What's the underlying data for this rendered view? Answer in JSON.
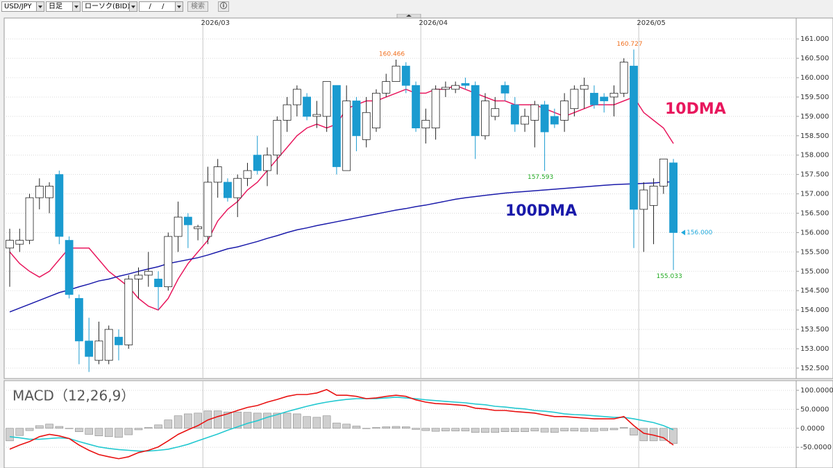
{
  "toolbar": {
    "symbol": "USD/JPY",
    "period": "日足",
    "chart_type": "ローソク(BID)",
    "date": "/ /",
    "search": "検索"
  },
  "chart_data": [
    {
      "type": "candlestick",
      "categories": [
        null,
        null,
        null,
        null,
        null,
        null,
        null,
        null,
        null,
        null,
        null,
        null,
        null,
        null,
        null,
        null,
        null,
        null,
        null,
        null,
        "2026/03",
        null,
        null,
        null,
        null,
        null,
        null,
        null,
        null,
        null,
        null,
        null,
        null,
        null,
        null,
        null,
        null,
        null,
        null,
        null,
        null,
        null,
        "2026/04",
        null,
        null,
        null,
        null,
        null,
        null,
        null,
        null,
        null,
        null,
        null,
        null,
        null,
        null,
        null,
        null,
        null,
        null,
        null,
        null,
        null,
        "2026/05",
        null,
        null,
        null
      ],
      "candles": {
        "up_color": "#ffffff",
        "down_color": "#1a9bd0",
        "open": [
          155.6,
          155.7,
          155.8,
          156.9,
          156.9,
          157.5,
          155.8,
          154.3,
          153.2,
          152.7,
          152.7,
          153.3,
          153.1,
          154.8,
          154.9,
          154.8,
          154.6,
          155.9,
          156.4,
          156.1,
          155.9,
          157.3,
          157.3,
          156.9,
          157.4,
          158.0,
          157.6,
          158.0,
          158.9,
          159.3,
          159.5,
          159.0,
          159.0,
          159.8,
          157.6,
          159.4,
          158.4,
          158.7,
          159.6,
          159.9,
          160.3,
          159.8,
          158.7,
          158.7,
          159.7,
          159.7,
          159.85,
          159.8,
          158.5,
          159.0,
          159.8,
          159.3,
          158.8,
          158.9,
          159.3,
          159.0,
          158.9,
          159.2,
          159.7,
          159.6,
          159.5,
          159.5,
          159.6,
          160.3,
          156.6,
          156.7,
          157.2,
          157.8
        ],
        "high": [
          156.1,
          156.1,
          157.0,
          157.4,
          157.3,
          157.6,
          155.9,
          154.4,
          153.8,
          153.7,
          153.6,
          153.5,
          154.9,
          155.1,
          155.5,
          155.0,
          156.0,
          156.8,
          156.5,
          156.2,
          157.7,
          157.9,
          157.4,
          157.5,
          157.8,
          158.5,
          158.2,
          159.0,
          159.5,
          159.8,
          159.6,
          159.4,
          159.9,
          159.8,
          159.8,
          159.5,
          159.5,
          159.7,
          160.1,
          160.466,
          160.4,
          159.9,
          159.2,
          159.8,
          159.9,
          159.9,
          160.0,
          159.9,
          159.6,
          159.5,
          159.9,
          159.5,
          159.2,
          159.4,
          159.4,
          159.2,
          159.6,
          159.8,
          160.0,
          159.8,
          159.6,
          159.8,
          160.5,
          160.727,
          157.3,
          157.4,
          157.9,
          157.9
        ],
        "low": [
          154.6,
          155.5,
          155.7,
          156.6,
          156.5,
          155.7,
          154.3,
          152.6,
          152.4,
          152.6,
          152.6,
          152.7,
          153.0,
          154.3,
          154.6,
          154.0,
          154.5,
          155.5,
          155.6,
          155.8,
          155.7,
          156.9,
          156.8,
          156.4,
          157.2,
          157.5,
          157.2,
          157.5,
          158.6,
          159.0,
          158.9,
          158.7,
          158.6,
          157.5,
          157.6,
          158.1,
          158.2,
          158.6,
          159.5,
          159.9,
          159.6,
          158.6,
          158.3,
          158.4,
          159.5,
          159.6,
          159.7,
          157.9,
          158.4,
          158.9,
          159.4,
          158.6,
          158.6,
          158.2,
          157.593,
          158.7,
          158.6,
          159.0,
          159.2,
          159.2,
          159.1,
          159.0,
          159.5,
          155.6,
          155.5,
          155.7,
          157.0,
          155.033
        ],
        "close": [
          155.8,
          155.8,
          156.9,
          157.2,
          157.2,
          155.9,
          154.4,
          153.2,
          152.8,
          153.2,
          153.5,
          153.1,
          154.8,
          154.9,
          155.0,
          154.6,
          155.9,
          156.4,
          156.2,
          156.15,
          157.3,
          157.7,
          156.9,
          157.4,
          157.6,
          157.6,
          158.0,
          158.9,
          159.3,
          159.7,
          159.0,
          159.05,
          159.9,
          157.7,
          159.4,
          158.5,
          159.1,
          159.6,
          159.9,
          160.3,
          159.8,
          158.7,
          158.9,
          159.7,
          159.75,
          159.8,
          159.8,
          158.5,
          159.4,
          159.2,
          159.6,
          158.8,
          159.0,
          159.3,
          158.6,
          158.8,
          159.4,
          159.7,
          159.8,
          159.3,
          159.4,
          159.6,
          160.4,
          156.6,
          157.1,
          157.2,
          157.9,
          156.0
        ],
        "high_labels": {
          "39": "160.466",
          "63": "160.727"
        },
        "low_labels": {
          "54": "157.593",
          "67": "155.033"
        },
        "last_label": "156.000"
      },
      "series": [
        {
          "name": "10DMA",
          "color": "#e8175d",
          "values": [
            155.5,
            155.2,
            155.0,
            154.85,
            155.0,
            155.3,
            155.6,
            155.6,
            155.6,
            155.3,
            155.0,
            154.8,
            154.6,
            154.3,
            154.1,
            154.0,
            154.3,
            154.8,
            155.2,
            155.5,
            155.8,
            156.3,
            156.6,
            156.8,
            157.1,
            157.3,
            157.6,
            157.9,
            158.2,
            158.5,
            158.7,
            158.8,
            158.7,
            158.8,
            159.2,
            159.3,
            159.4,
            159.4,
            159.5,
            159.6,
            159.7,
            159.6,
            159.6,
            159.7,
            159.7,
            159.8,
            159.7,
            159.6,
            159.5,
            159.4,
            159.4,
            159.3,
            159.3,
            159.3,
            159.2,
            159.1,
            159.0,
            159.1,
            159.2,
            159.3,
            159.3,
            159.3,
            159.4,
            159.5,
            159.1,
            158.9,
            158.7,
            158.3
          ]
        },
        {
          "name": "100DMA",
          "color": "#1a1aaa",
          "values": [
            153.95,
            154.05,
            154.15,
            154.25,
            154.35,
            154.45,
            154.52,
            154.6,
            154.67,
            154.75,
            154.8,
            154.87,
            154.93,
            155.0,
            155.06,
            155.12,
            155.2,
            155.25,
            155.3,
            155.35,
            155.42,
            155.5,
            155.58,
            155.63,
            155.7,
            155.77,
            155.85,
            155.92,
            156.0,
            156.07,
            156.12,
            156.18,
            156.23,
            156.28,
            156.33,
            156.38,
            156.43,
            156.48,
            156.53,
            156.58,
            156.62,
            156.67,
            156.71,
            156.76,
            156.81,
            156.86,
            156.9,
            156.93,
            156.96,
            156.99,
            157.02,
            157.04,
            157.06,
            157.08,
            157.1,
            157.12,
            157.14,
            157.16,
            157.18,
            157.2,
            157.22,
            157.24,
            157.25,
            157.26,
            157.27,
            157.28,
            157.3,
            157.31
          ]
        }
      ],
      "ylim": [
        152.23,
        161.54
      ],
      "yticks": [
        {
          "value": 152.5,
          "label": "152.500"
        },
        {
          "value": 153,
          "label": "153.000"
        },
        {
          "value": 153.5,
          "label": "153.500"
        },
        {
          "value": 154,
          "label": "154.000"
        },
        {
          "value": 154.5,
          "label": "154.500"
        },
        {
          "value": 155,
          "label": "155.000"
        },
        {
          "value": 155.5,
          "label": "155.500"
        },
        {
          "value": 156,
          "label": "156.000"
        },
        {
          "value": 156.5,
          "label": "156.500"
        },
        {
          "value": 157,
          "label": "157.000"
        },
        {
          "value": 157.5,
          "label": "157.500"
        },
        {
          "value": 158,
          "label": "158.000"
        },
        {
          "value": 158.5,
          "label": "158.500"
        },
        {
          "value": 159,
          "label": "159.000"
        },
        {
          "value": 159.5,
          "label": "159.500"
        },
        {
          "value": 160,
          "label": "160.000"
        },
        {
          "value": 160.5,
          "label": "160.500"
        },
        {
          "value": 161,
          "label": "161.000"
        }
      ],
      "grid": true
    },
    {
      "type": "macd",
      "title": "MACD（12,26,9）",
      "series": [
        {
          "color": "#e81010",
          "values": [
            -55,
            -44,
            -35,
            -22,
            -16,
            -20,
            -27,
            -44,
            -58,
            -69,
            -75,
            -80,
            -75,
            -64,
            -58,
            -49,
            -33,
            -16,
            -4,
            7,
            22,
            31,
            38,
            47,
            55,
            60,
            69,
            76,
            84,
            89,
            89,
            93,
            102,
            87,
            87,
            84,
            78,
            80,
            84,
            87,
            84,
            75,
            69,
            65,
            64,
            62,
            60,
            53,
            51,
            47,
            47,
            44,
            42,
            40,
            35,
            31,
            31,
            29,
            27,
            25,
            25,
            25,
            31,
            7,
            -13,
            -18,
            -25,
            -44
          ]
        },
        {
          "color": "#22c8d0",
          "values": [
            -22,
            -25,
            -29,
            -29,
            -27,
            -25,
            -27,
            -35,
            -42,
            -49,
            -53,
            -56,
            -58,
            -60,
            -60,
            -58,
            -55,
            -49,
            -42,
            -33,
            -24,
            -15,
            -5,
            4,
            13,
            20,
            29,
            36,
            44,
            51,
            58,
            64,
            69,
            73,
            76,
            78,
            78,
            78,
            80,
            82,
            80,
            78,
            75,
            73,
            71,
            69,
            67,
            64,
            62,
            58,
            56,
            53,
            51,
            47,
            45,
            42,
            38,
            36,
            35,
            33,
            31,
            29,
            29,
            25,
            20,
            15,
            7,
            -4
          ]
        }
      ],
      "histogram": {
        "color": "#cfcfcf",
        "values": [
          -33,
          -19,
          -6,
          7,
          11,
          5,
          0,
          -9,
          -16,
          -20,
          -22,
          -24,
          -17,
          -4,
          2,
          9,
          22,
          33,
          38,
          40,
          46,
          46,
          43,
          43,
          42,
          40,
          40,
          40,
          40,
          38,
          31,
          29,
          33,
          14,
          11,
          6,
          0,
          2,
          4,
          5,
          4,
          -3,
          -6,
          -8,
          -7,
          -7,
          -7,
          -11,
          -11,
          -11,
          -9,
          -9,
          -9,
          -7,
          -10,
          -11,
          -7,
          -7,
          -8,
          -8,
          -6,
          -4,
          2,
          -18,
          -33,
          -33,
          -32,
          -40
        ]
      },
      "ylim": [
        -104.5,
        125.5
      ],
      "yticks": [
        {
          "value": -50,
          "label": "-50.0000"
        },
        {
          "value": 0,
          "label": "0.0000"
        },
        {
          "value": 50,
          "label": "50.0000"
        },
        {
          "value": 100,
          "label": "100.0000"
        }
      ],
      "grid": true
    }
  ]
}
